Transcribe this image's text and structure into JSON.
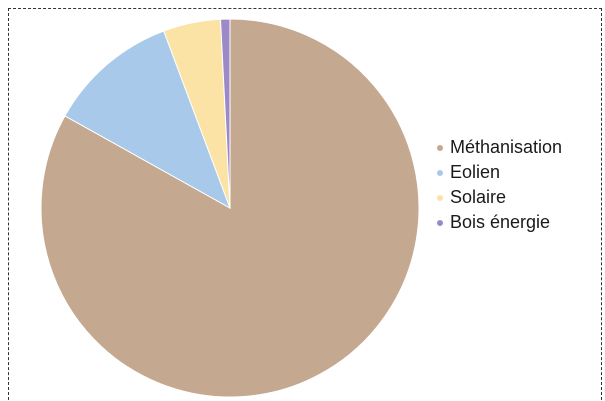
{
  "chart_data": {
    "type": "pie",
    "categories": [
      "Méthanisation",
      "Eolien",
      "Solaire",
      "Bois énergie"
    ],
    "values": [
      83.1,
      11.2,
      4.9,
      0.8
    ],
    "unit": "%",
    "colors": [
      "#c4a88f",
      "#a9c9ea",
      "#fae3a5",
      "#9c8ac8"
    ],
    "legend_position": "right",
    "start_angle_deg": 0,
    "direction": "clockwise",
    "title": ""
  }
}
